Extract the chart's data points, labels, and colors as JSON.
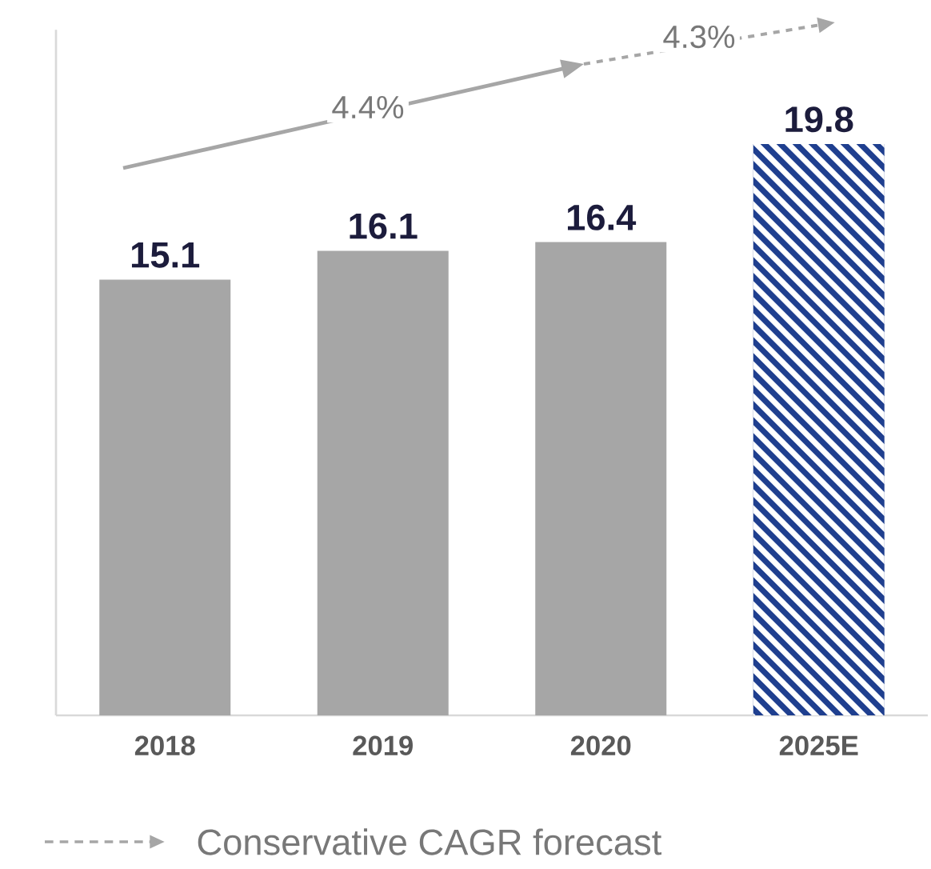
{
  "chart_data": {
    "type": "bar",
    "categories": [
      "2018",
      "2019",
      "2020",
      "2025E"
    ],
    "series": [
      {
        "color": "#a6a6a6",
        "values": [
          15.1,
          16.1,
          16.4,
          null
        ]
      },
      {
        "color": "#1f3f8f",
        "values": [
          null,
          null,
          null,
          19.8
        ]
      }
    ],
    "data_labels": true,
    "annotations": [
      "4.4%",
      "4.3%",
      "Conservative CAGR forecast"
    ]
  }
}
